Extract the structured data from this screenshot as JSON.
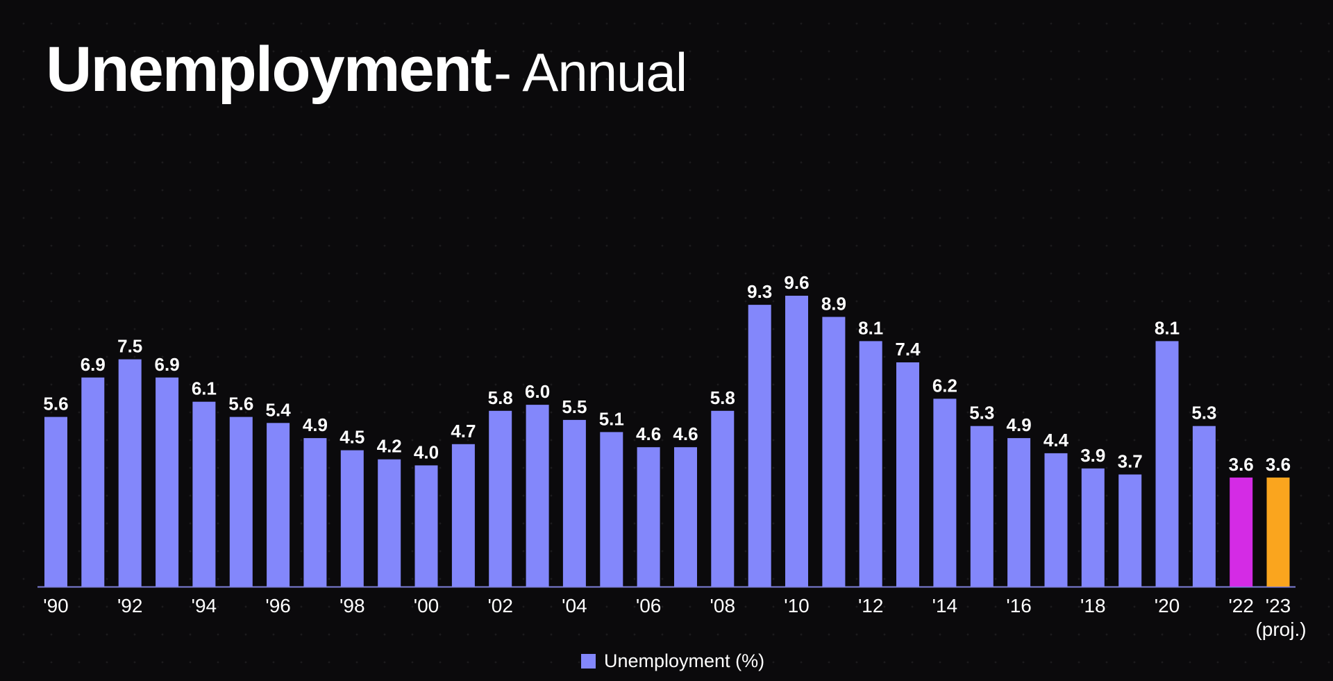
{
  "header": {
    "title_main": "Unemployment",
    "title_sub": "- Annual"
  },
  "colors": {
    "bar": "#8387fb",
    "bar_2022": "#d42be5",
    "bar_2023": "#faa51e",
    "axis": "#7d7fd8"
  },
  "legend": {
    "label": "Unemployment (%)"
  },
  "chart_data": {
    "type": "bar",
    "title": "Unemployment - Annual",
    "xlabel": "",
    "ylabel": "",
    "ylim": [
      0,
      9.6
    ],
    "grid": false,
    "legend_position": "bottom",
    "categories": [
      "1990",
      "1991",
      "1992",
      "1993",
      "1994",
      "1995",
      "1996",
      "1997",
      "1998",
      "1999",
      "2000",
      "2001",
      "2002",
      "2003",
      "2004",
      "2005",
      "2006",
      "2007",
      "2008",
      "2009",
      "2010",
      "2011",
      "2012",
      "2013",
      "2014",
      "2015",
      "2016",
      "2017",
      "2018",
      "2019",
      "2020",
      "2021",
      "2022",
      "2023"
    ],
    "tick_labels": [
      "'90",
      "",
      "'92",
      "",
      "'94",
      "",
      "'96",
      "",
      "'98",
      "",
      "'00",
      "",
      "'02",
      "",
      "'04",
      "",
      "'06",
      "",
      "'08",
      "",
      "'10",
      "",
      "'12",
      "",
      "'14",
      "",
      "'16",
      "",
      "'18",
      "",
      "'20",
      "",
      "'22",
      "'23"
    ],
    "tick_sublabels": {
      "2023": "(proj.)"
    },
    "series": [
      {
        "name": "Unemployment (%)",
        "values": [
          5.6,
          6.9,
          7.5,
          6.9,
          6.1,
          5.6,
          5.4,
          4.9,
          4.5,
          4.2,
          4.0,
          4.7,
          5.8,
          6.0,
          5.5,
          5.1,
          4.6,
          4.6,
          5.8,
          9.3,
          9.6,
          8.9,
          8.1,
          7.4,
          6.2,
          5.3,
          4.9,
          4.4,
          3.9,
          3.7,
          8.1,
          5.3,
          3.6,
          3.6
        ],
        "value_labels": [
          "5.6",
          "6.9",
          "7.5",
          "6.9",
          "6.1",
          "5.6",
          "5.4",
          "4.9",
          "4.5",
          "4.2",
          "4.0",
          "4.7",
          "5.8",
          "6.0",
          "5.5",
          "5.1",
          "4.6",
          "4.6",
          "5.8",
          "9.3",
          "9.6",
          "8.9",
          "8.1",
          "7.4",
          "6.2",
          "5.3",
          "4.9",
          "4.4",
          "3.9",
          "3.7",
          "8.1",
          "5.3",
          "3.6",
          "3.6"
        ]
      }
    ]
  }
}
